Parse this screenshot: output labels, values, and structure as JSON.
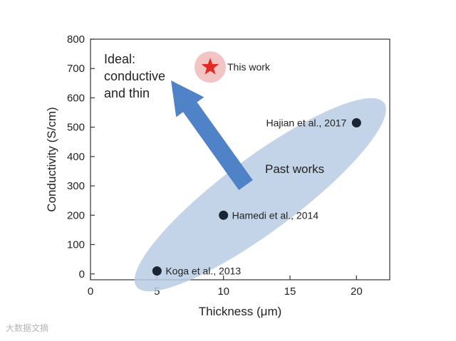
{
  "chart_data": {
    "type": "scatter",
    "xlabel": "Thickness (μm)",
    "ylabel": "Conductivity (S/cm)",
    "xlim": [
      0,
      22.5
    ],
    "ylim": [
      -20,
      800
    ],
    "x_ticks": [
      0,
      5,
      10,
      15,
      20
    ],
    "y_ticks": [
      0,
      100,
      200,
      300,
      400,
      500,
      600,
      700,
      800
    ],
    "grid": false,
    "points": [
      {
        "label": "Koga et al., 2013",
        "x": 5,
        "y": 10
      },
      {
        "label": "Hamedi et al., 2014",
        "x": 10,
        "y": 200
      },
      {
        "label": "Hajian et al., 2017",
        "x": 20,
        "y": 515
      }
    ],
    "highlight": {
      "label": "This work",
      "x": 9,
      "y": 705
    },
    "annotations": {
      "region": "Past works",
      "ideal_lines": [
        "Ideal:",
        "conductive",
        "and thin"
      ]
    },
    "colors": {
      "point": "#1b2432",
      "star": "#e32b25",
      "star_halo": "#f3c4c4",
      "ellipse": "#b8cde4",
      "arrow": "#4f82c6"
    }
  },
  "watermark": "大数据文摘"
}
